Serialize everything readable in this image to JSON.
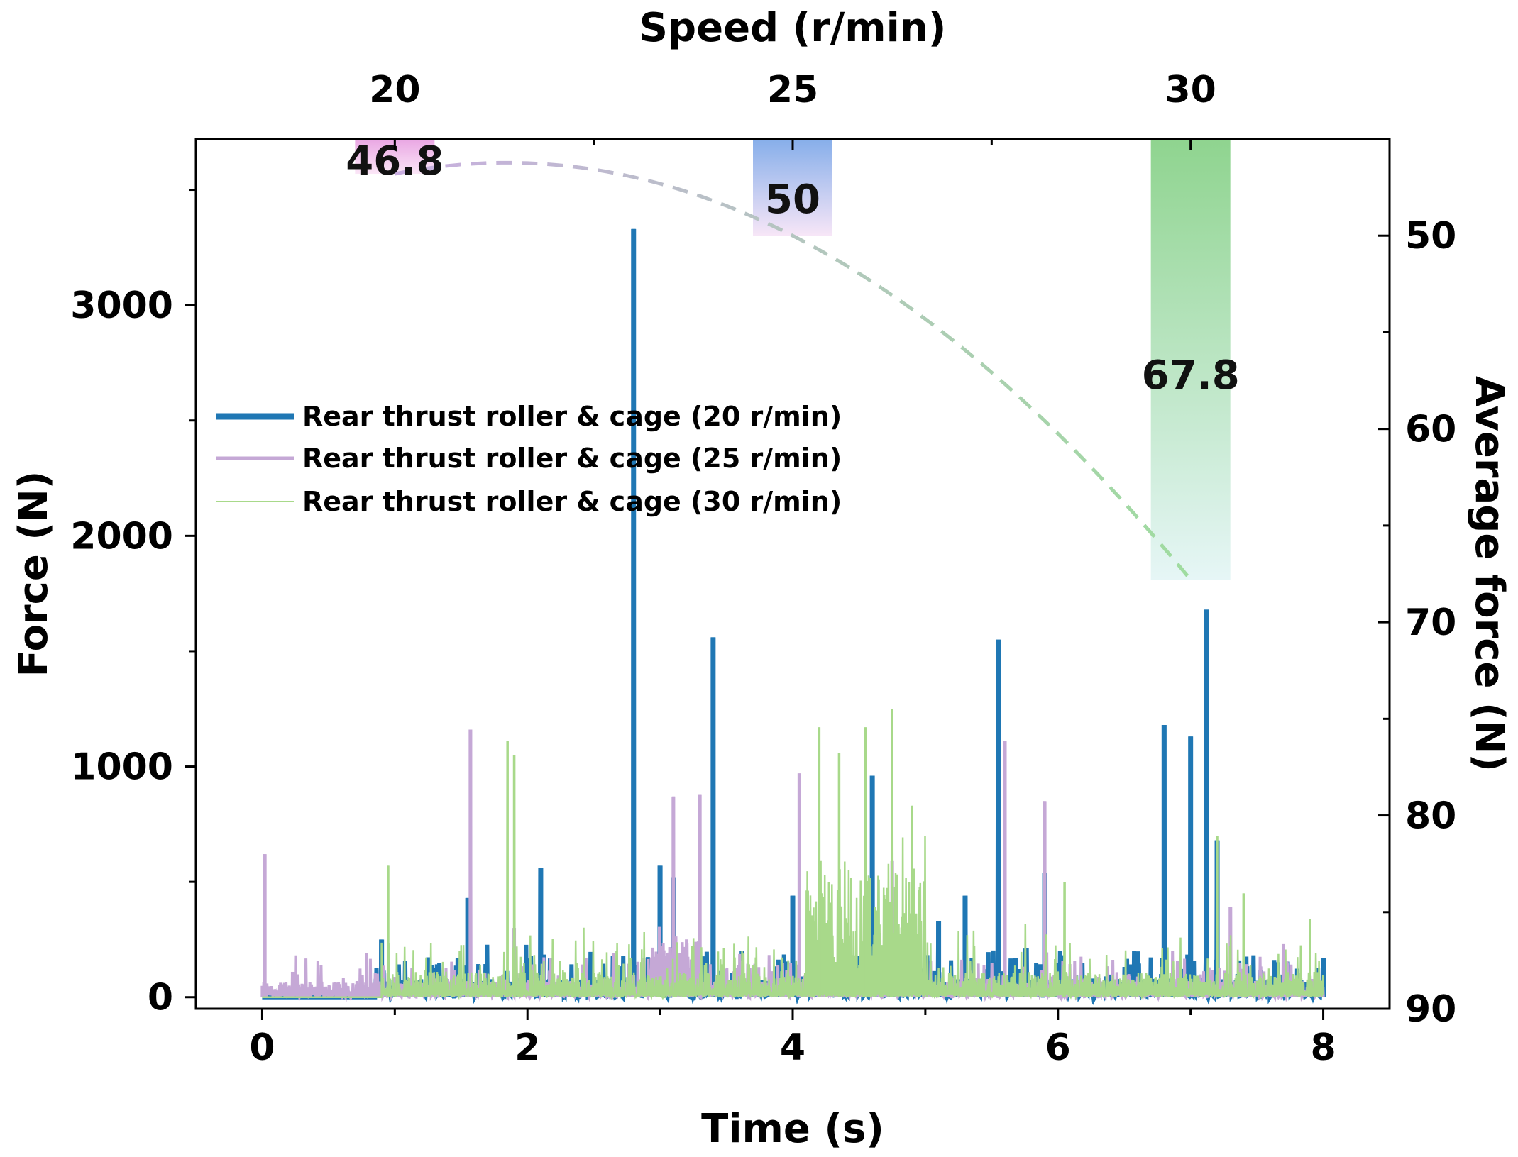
{
  "chart_data": {
    "type": "line",
    "xlabel": "Time (s)",
    "ylabel": "Force (N)",
    "top_xlabel": "Speed (r/min)",
    "right_ylabel": "Average force (N)",
    "xlim": [
      -0.5,
      8.5
    ],
    "ylim": [
      -50,
      3720
    ],
    "x_ticks": [
      0,
      2,
      4,
      6,
      8
    ],
    "y_ticks": [
      0,
      1000,
      2000,
      3000
    ],
    "top_xlim": [
      17.5,
      32.5
    ],
    "top_ticks": [
      20,
      25,
      30
    ],
    "right_ylim": [
      90,
      45
    ],
    "right_ticks": [
      50,
      60,
      70,
      80,
      90
    ],
    "legend": [
      "Rear thrust roller & cage (20 r/min)",
      "Rear thrust roller & cage (25 r/min)",
      "Rear thrust roller & cage (30 r/min)"
    ],
    "series": [
      {
        "name": "Rear thrust roller & cage (20 r/min)",
        "color": "#1f77b4",
        "peaks": [
          {
            "x": 0.9,
            "y": 250
          },
          {
            "x": 1.55,
            "y": 430
          },
          {
            "x": 2.1,
            "y": 560
          },
          {
            "x": 2.8,
            "y": 3330
          },
          {
            "x": 3.0,
            "y": 570
          },
          {
            "x": 3.1,
            "y": 520
          },
          {
            "x": 3.4,
            "y": 1560
          },
          {
            "x": 4.0,
            "y": 440
          },
          {
            "x": 4.6,
            "y": 960
          },
          {
            "x": 5.1,
            "y": 330
          },
          {
            "x": 5.3,
            "y": 440
          },
          {
            "x": 5.55,
            "y": 1550
          },
          {
            "x": 5.9,
            "y": 540
          },
          {
            "x": 6.8,
            "y": 1180
          },
          {
            "x": 7.0,
            "y": 1130
          },
          {
            "x": 7.12,
            "y": 1680
          },
          {
            "x": 7.2,
            "y": 680
          },
          {
            "x": 8.0,
            "y": 170
          }
        ]
      },
      {
        "name": "Rear thrust roller & cage (25 r/min)",
        "color": "#c5a8d6",
        "peaks": [
          {
            "x": 0.02,
            "y": 620
          },
          {
            "x": 0.23,
            "y": 110
          },
          {
            "x": 1.57,
            "y": 1160
          },
          {
            "x": 1.9,
            "y": 300
          },
          {
            "x": 3.1,
            "y": 870
          },
          {
            "x": 3.3,
            "y": 880
          },
          {
            "x": 4.05,
            "y": 970
          },
          {
            "x": 4.75,
            "y": 590
          },
          {
            "x": 5.6,
            "y": 1110
          },
          {
            "x": 5.9,
            "y": 850
          },
          {
            "x": 7.3,
            "y": 390
          },
          {
            "x": 7.7,
            "y": 230
          }
        ]
      },
      {
        "name": "Rear thrust roller & cage (30 r/min)",
        "color": "#a8d98a",
        "peaks": [
          {
            "x": 0.95,
            "y": 570
          },
          {
            "x": 1.85,
            "y": 1110
          },
          {
            "x": 1.9,
            "y": 1050
          },
          {
            "x": 4.2,
            "y": 1170
          },
          {
            "x": 4.35,
            "y": 1060
          },
          {
            "x": 4.55,
            "y": 1170
          },
          {
            "x": 4.75,
            "y": 1250
          },
          {
            "x": 4.9,
            "y": 830
          },
          {
            "x": 6.05,
            "y": 500
          },
          {
            "x": 7.2,
            "y": 700
          },
          {
            "x": 7.4,
            "y": 450
          },
          {
            "x": 7.9,
            "y": 340
          }
        ]
      }
    ],
    "average_force": {
      "type": "bar",
      "categories": [
        20,
        25,
        30
      ],
      "values": [
        46.8,
        50,
        67.8
      ],
      "labels": [
        "46.8",
        "50",
        "67.8"
      ],
      "colors_top": [
        "#e9a6e3",
        "#86aeea",
        "#8fd48f"
      ],
      "colors_bottom": [
        "#fbe6f7",
        "#f7e6f7",
        "#e6f6f6"
      ],
      "trend_line": "dashed",
      "trend_colors": [
        "#c9aee0",
        "#9fdc9f"
      ]
    }
  }
}
